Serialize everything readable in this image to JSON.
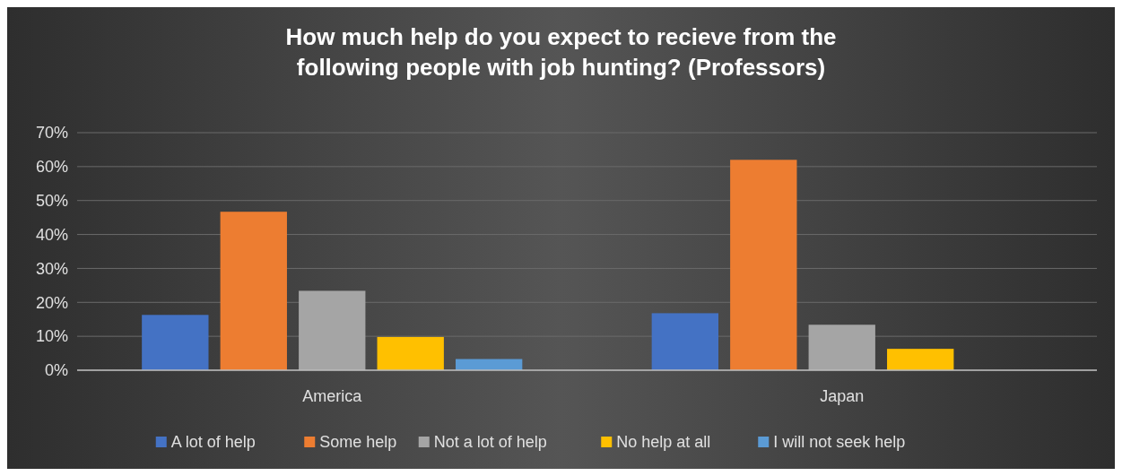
{
  "chart_data": {
    "type": "bar",
    "title": "How much help do you expect to recieve from the following people with job hunting? (Professors)",
    "categories": [
      "America",
      "Japan"
    ],
    "series": [
      {
        "name": "A lot of help",
        "color": "#4472c4",
        "values": [
          16.3,
          16.8
        ]
      },
      {
        "name": "Some help",
        "color": "#ed7d31",
        "values": [
          46.7,
          62
        ]
      },
      {
        "name": "Not a lot of help",
        "color": "#a5a5a5",
        "values": [
          23.4,
          13.4
        ]
      },
      {
        "name": "No help at all",
        "color": "#ffc000",
        "values": [
          9.8,
          6.3
        ]
      },
      {
        "name": "I will not seek help",
        "color": "#5b9bd5",
        "values": [
          3.3,
          0
        ]
      }
    ],
    "ylim": [
      0,
      70
    ],
    "yticks": [
      {
        "value": 0,
        "label": "0%"
      },
      {
        "value": 10,
        "label": "10%"
      },
      {
        "value": 20,
        "label": "20%"
      },
      {
        "value": 30,
        "label": "30%"
      },
      {
        "value": 40,
        "label": "40%"
      },
      {
        "value": 50,
        "label": "50%"
      },
      {
        "value": 60,
        "label": "60%"
      },
      {
        "value": 70,
        "label": "70%"
      }
    ],
    "grid": "y",
    "legend": "bottom"
  }
}
